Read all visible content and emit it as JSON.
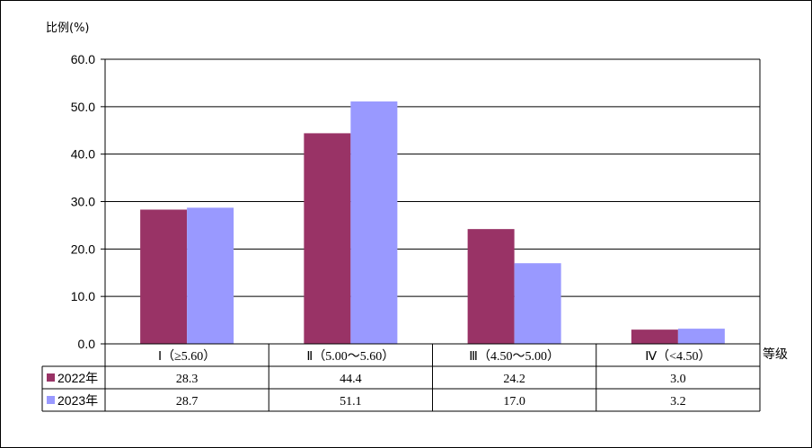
{
  "chart_data": {
    "type": "bar",
    "ylabel": "比例(%)",
    "xlabel": "等级",
    "ylim": [
      0,
      60
    ],
    "yticks": [
      "0.0",
      "10.0",
      "20.0",
      "30.0",
      "40.0",
      "50.0",
      "60.0"
    ],
    "categories": [
      "Ⅰ（≥5.60）",
      "Ⅱ（5.00～5.60）",
      "Ⅲ（4.50～5.00）",
      "Ⅳ（<4.50）"
    ],
    "series": [
      {
        "name": "2022年",
        "color": "#993366",
        "values": [
          28.3,
          44.4,
          24.2,
          3.0
        ],
        "labels": [
          "28.3",
          "44.4",
          "24.2",
          "3.0"
        ]
      },
      {
        "name": "2023年",
        "color": "#9999ff",
        "values": [
          28.7,
          51.1,
          17.0,
          3.2
        ],
        "labels": [
          "28.7",
          "51.1",
          "17.0",
          "3.2"
        ]
      }
    ],
    "grid": true,
    "legend": "data-table-left"
  }
}
